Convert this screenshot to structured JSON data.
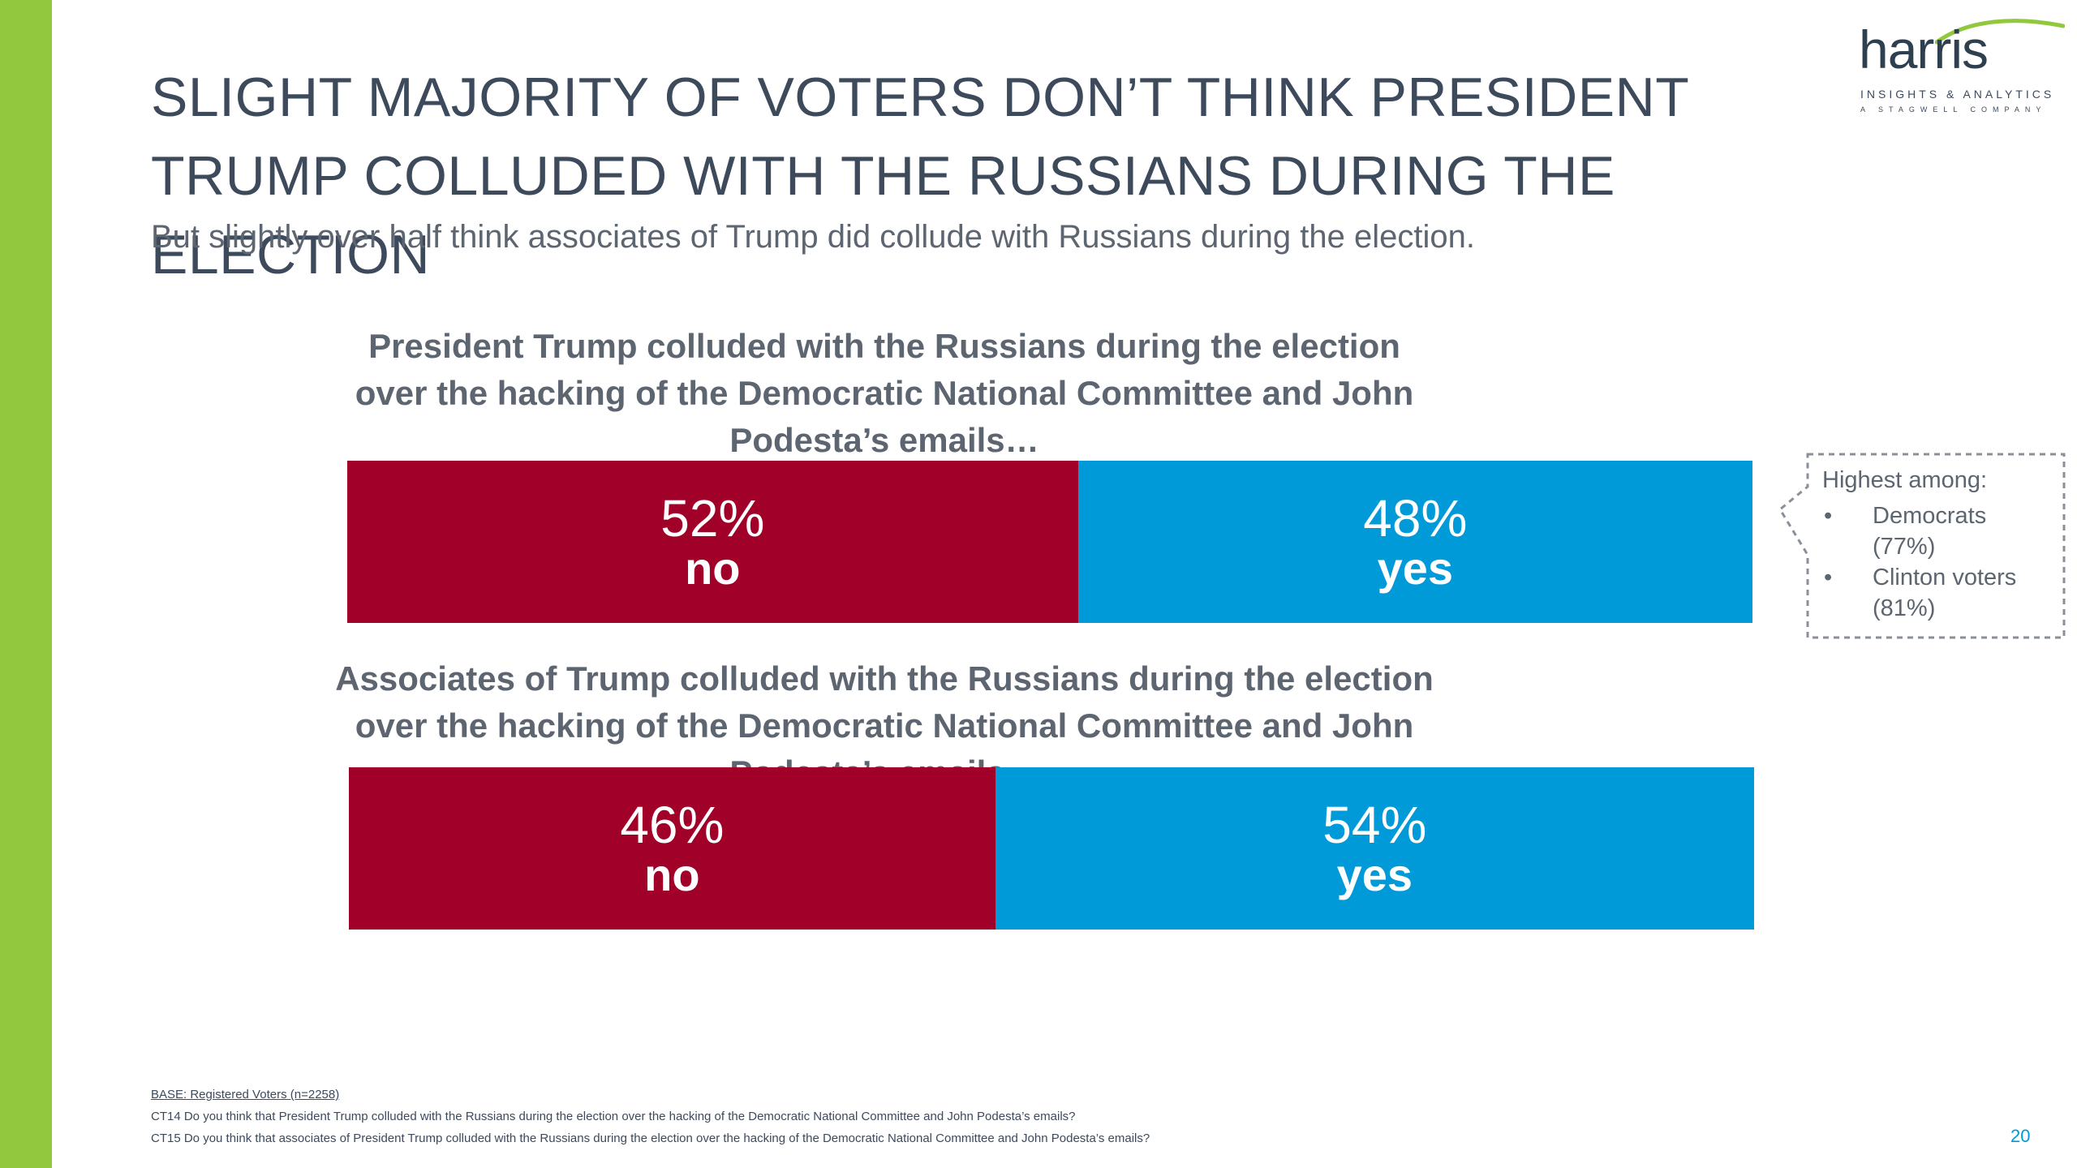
{
  "slide": {
    "title": "SLIGHT MAJORITY OF VOTERS DON’T THINK PRESIDENT TRUMP COLLUDED WITH THE RUSSIANS DURING THE ELECTION",
    "subtitle": "But slightly over half think associates of Trump did collude with Russians during the election.",
    "page_number": "20"
  },
  "logo": {
    "word": "harris",
    "line1": "INSIGHTS & ANALYTICS",
    "line2": "A STAGWELL COMPANY"
  },
  "colors": {
    "accent_green": "#92c83e",
    "no": "#a10028",
    "yes": "#009ad9",
    "title_text": "#3d4a5c"
  },
  "chart_data": [
    {
      "type": "bar",
      "orientation": "horizontal-stacked-100",
      "title": "President Trump colluded with the Russians during the election over the hacking of the Democratic National Committee and John Podesta’s emails…",
      "categories": [
        "no",
        "yes"
      ],
      "values": [
        52,
        48
      ],
      "data_labels": [
        "52%",
        "48%"
      ]
    },
    {
      "type": "bar",
      "orientation": "horizontal-stacked-100",
      "title": "Associates of Trump colluded with the Russians during the election over the hacking of the Democratic National Committee and John Podesta’s emails…",
      "categories": [
        "no",
        "yes"
      ],
      "values": [
        46,
        54
      ],
      "data_labels": [
        "46%",
        "54%"
      ]
    }
  ],
  "callout": {
    "heading": "Highest among:",
    "items": [
      {
        "label": "Democrats",
        "value": "(77%)"
      },
      {
        "label": "Clinton voters",
        "value": "(81%)"
      }
    ]
  },
  "footer": {
    "base": "BASE: Registered Voters (n=2258)",
    "ct14": "CT14 Do you think that President Trump colluded with the Russians during the election over the hacking of the Democratic National Committee and John Podesta’s emails?",
    "ct15": "CT15 Do you think that associates of President Trump colluded with the Russians during the election over the hacking of the Democratic National Committee and John Podesta’s emails?"
  }
}
